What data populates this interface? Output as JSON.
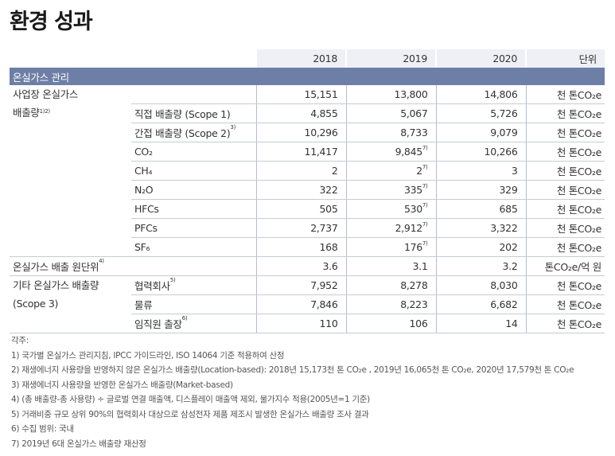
{
  "title": "환경 성과",
  "columns": {
    "y2018": "2018",
    "y2019": "2019",
    "y2020": "2020",
    "unit": "단위"
  },
  "section": "온실가스 관리",
  "unit_common": "천 톤CO₂e",
  "scope12_label_1": "사업장 온실가스",
  "scope12_label_2": "배출량",
  "scope12_label_sup": "1)2)",
  "rows": [
    {
      "sub": "",
      "sup": "",
      "v18": "15,151",
      "v19": "13,800",
      "v19n": "",
      "v20": "14,806"
    },
    {
      "sub": "직접 배출량 (Scope 1)",
      "sup": "",
      "v18": "4,855",
      "v19": "5,067",
      "v19n": "",
      "v20": "5,726"
    },
    {
      "sub": "간접 배출량 (Scope 2)",
      "sup": "3)",
      "v18": "10,296",
      "v19": "8,733",
      "v19n": "",
      "v20": "9,079"
    },
    {
      "sub": "CO₂",
      "sup": "",
      "v18": "11,417",
      "v19": "9,845",
      "v19n": "7)",
      "v20": "10,266"
    },
    {
      "sub": "CH₄",
      "sup": "",
      "v18": "2",
      "v19": "2",
      "v19n": "7)",
      "v20": "3"
    },
    {
      "sub": "N₂O",
      "sup": "",
      "v18": "322",
      "v19": "335",
      "v19n": "7)",
      "v20": "329"
    },
    {
      "sub": "HFCs",
      "sup": "",
      "v18": "505",
      "v19": "530",
      "v19n": "7)",
      "v20": "685"
    },
    {
      "sub": "PFCs",
      "sup": "",
      "v18": "2,737",
      "v19": "2,912",
      "v19n": "7)",
      "v20": "3,322"
    },
    {
      "sub": "SF₆",
      "sup": "",
      "v18": "168",
      "v19": "176",
      "v19n": "7)",
      "v20": "202"
    }
  ],
  "intensity": {
    "label": "온실가스 배출 원단위",
    "sup": "4)",
    "v18": "3.6",
    "v19": "3.1",
    "v20": "3.2",
    "unit": "톤CO₂e/억 원"
  },
  "scope3_label_1": "기타 온실가스 배출량",
  "scope3_label_2": "(Scope 3)",
  "scope3_rows": [
    {
      "sub": "협력회사",
      "sup": "5)",
      "v18": "7,952",
      "v19": "8,278",
      "v20": "8,030"
    },
    {
      "sub": "물류",
      "sup": "",
      "v18": "7,846",
      "v19": "8,223",
      "v20": "6,682"
    },
    {
      "sub": "임직원 출장",
      "sup": "6)",
      "v18": "110",
      "v19": "106",
      "v20": "14"
    }
  ],
  "notes": [
    "각주:",
    "1) 국가별 온실가스 관리지침, IPCC 가이드라인, ISO 14064 기준 적용하여 산정",
    "2) 재생에너지 사용량을 반영하지 않은 온실가스 배출량(Location-based): 2018년 15,173천 톤 CO₂e , 2019년 16,065천 톤 CO₂e, 2020년 17,579천 톤 CO₂e",
    "3) 재생에너지 사용량을 반영한 온실가스 배출량(Market-based)",
    "4) (총 배출량-총 사용량) ÷ 글로벌 연결 매출액, 디스플레이 매출액 제외, 물가지수 적용(2005년=1 기준)",
    "5) 거래비중 규모 상위 90%의 협력회사 대상으로 삼성전자 제품 제조시 발생한 온실가스 배출량 조사 결과",
    "6) 수집 범위: 국내",
    "7) 2019년 6대 온실가스 배출량 재산정"
  ]
}
